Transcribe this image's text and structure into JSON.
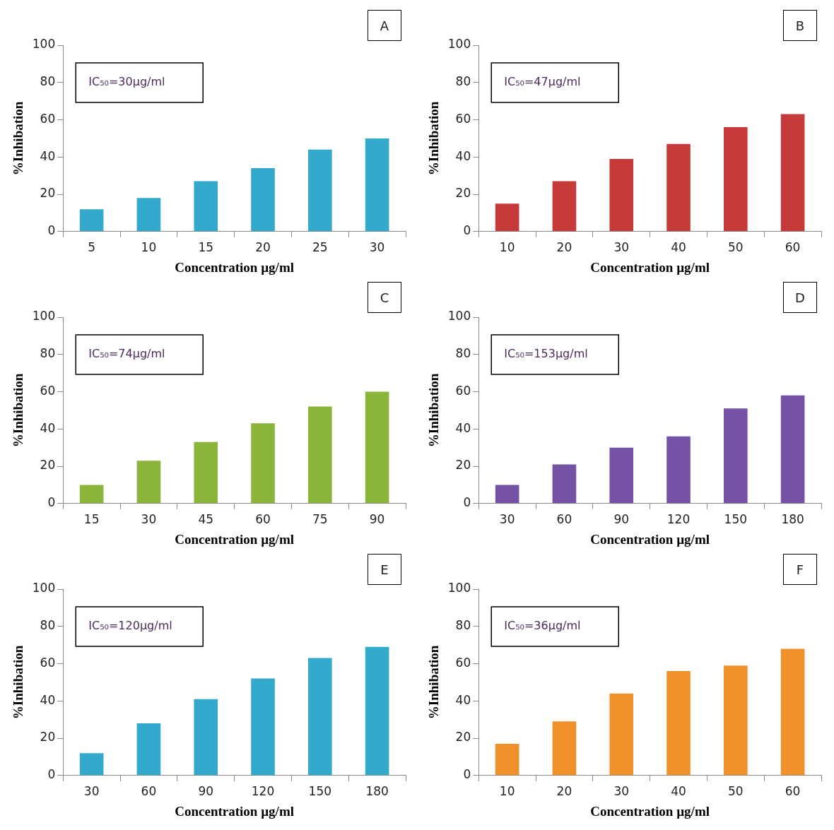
{
  "chart_data": [
    {
      "type": "bar",
      "title": "A",
      "xlabel": "Concentration µg/ml",
      "ylabel": "%Inhibation",
      "categories": [
        "5",
        "10",
        "15",
        "20",
        "25",
        "30"
      ],
      "values": [
        12,
        18,
        27,
        34,
        44,
        50
      ],
      "color": "#33a9cc",
      "ylim": [
        0,
        100
      ],
      "yticks": [
        0,
        20,
        40,
        60,
        80,
        100
      ],
      "annotations": [
        "IC₅₀=30µg/ml"
      ],
      "grid": false,
      "legend": false
    },
    {
      "type": "bar",
      "title": "B",
      "xlabel": "Concentration µg/ml",
      "ylabel": "%Inhibation",
      "categories": [
        "10",
        "20",
        "30",
        "40",
        "50",
        "60"
      ],
      "values": [
        15,
        27,
        39,
        47,
        56,
        63
      ],
      "color": "#c63a3a",
      "ylim": [
        0,
        100
      ],
      "yticks": [
        0,
        20,
        40,
        60,
        80,
        100
      ],
      "annotations": [
        "IC₅₀=47µg/ml"
      ],
      "grid": false,
      "legend": false
    },
    {
      "type": "bar",
      "title": "C",
      "xlabel": "Concentration µg/ml",
      "ylabel": "%Inhibation",
      "categories": [
        "15",
        "30",
        "45",
        "60",
        "75",
        "90"
      ],
      "values": [
        10,
        23,
        33,
        43,
        52,
        60
      ],
      "color": "#8ab53a",
      "ylim": [
        0,
        100
      ],
      "yticks": [
        0,
        20,
        40,
        60,
        80,
        100
      ],
      "annotations": [
        "IC₅₀=74µg/ml"
      ],
      "grid": false,
      "legend": false
    },
    {
      "type": "bar",
      "title": "D",
      "xlabel": "Concentration µg/ml",
      "ylabel": "%Inhibation",
      "categories": [
        "30",
        "60",
        "90",
        "120",
        "150",
        "180"
      ],
      "values": [
        10,
        21,
        30,
        36,
        51,
        58
      ],
      "color": "#7552a3",
      "ylim": [
        0,
        100
      ],
      "yticks": [
        0,
        20,
        40,
        60,
        80,
        100
      ],
      "annotations": [
        "IC₅₀=153µg/ml"
      ],
      "grid": false,
      "legend": false
    },
    {
      "type": "bar",
      "title": "E",
      "xlabel": "Concentration µg/ml",
      "ylabel": "%Inhibation",
      "categories": [
        "30",
        "60",
        "90",
        "120",
        "150",
        "180"
      ],
      "values": [
        12,
        28,
        41,
        52,
        63,
        69
      ],
      "color": "#33a9cc",
      "ylim": [
        0,
        100
      ],
      "yticks": [
        0,
        20,
        40,
        60,
        80,
        100
      ],
      "annotations": [
        "IC₅₀=120µg/ml"
      ],
      "grid": false,
      "legend": false
    },
    {
      "type": "bar",
      "title": "F",
      "xlabel": "Concentration µg/ml",
      "ylabel": "%Inhibation",
      "categories": [
        "10",
        "20",
        "30",
        "40",
        "50",
        "60"
      ],
      "values": [
        17,
        29,
        44,
        56,
        59,
        68
      ],
      "color": "#f0902a",
      "ylim": [
        0,
        100
      ],
      "yticks": [
        0,
        20,
        40,
        60,
        80,
        100
      ],
      "annotations": [
        "IC₅₀=36µg/ml"
      ],
      "grid": false,
      "legend": false
    }
  ]
}
